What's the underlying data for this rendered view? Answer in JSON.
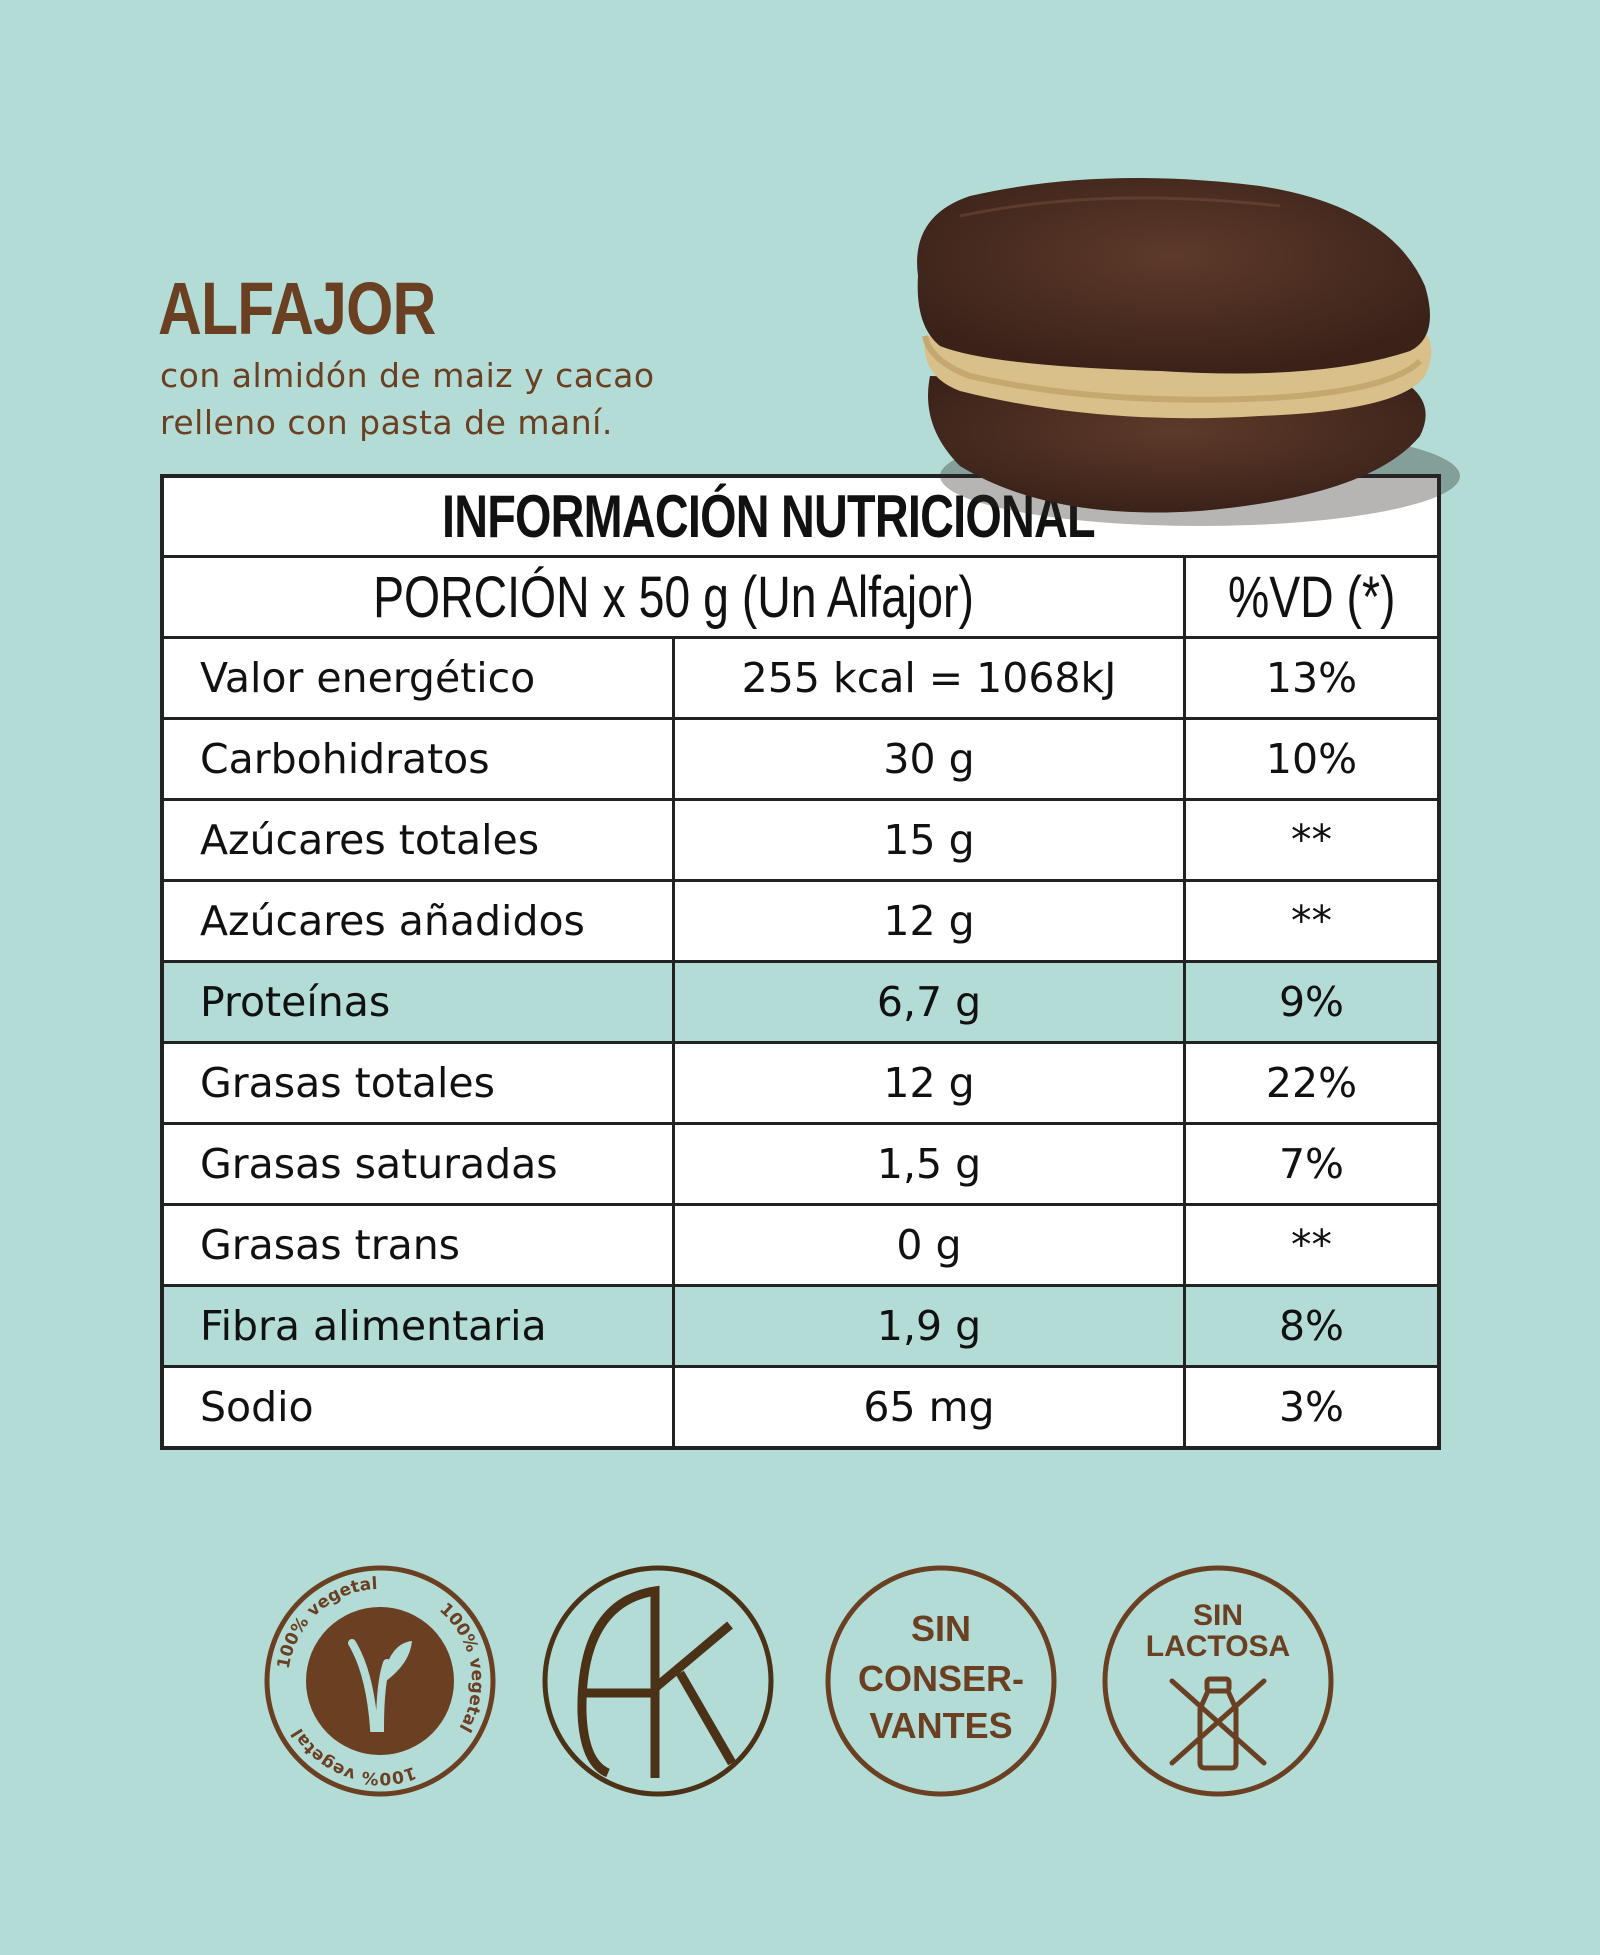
{
  "product": {
    "title": "ALFAJOR",
    "subtitle_lines": [
      "con almidón de maiz y cacao",
      "relleno con pasta de maní."
    ]
  },
  "table": {
    "title": "INFORMACIÓN NUTRICIONAL",
    "portion": "PORCIÓN x 50 g (Un Alfajor)",
    "vd_header": "%VD (*)",
    "rows": [
      {
        "name": "Valor energético",
        "value": "255 kcal = 1068kJ",
        "vd": "13%"
      },
      {
        "name": "Carbohidratos",
        "value": "30 g",
        "vd": "10%"
      },
      {
        "name": "Azúcares totales",
        "value": "15 g",
        "vd": "**"
      },
      {
        "name": "Azúcares añadidos",
        "value": "12 g",
        "vd": "**"
      },
      {
        "name": "Proteínas",
        "value": "6,7 g",
        "vd": "9%",
        "highlight": true
      },
      {
        "name": "Grasas totales",
        "value": "12 g",
        "vd": "22%"
      },
      {
        "name": "Grasas saturadas",
        "value": "1,5 g",
        "vd": "7%"
      },
      {
        "name": "Grasas trans",
        "value": "0 g",
        "vd": "**"
      },
      {
        "name": "Fibra alimentaria",
        "value": "1,9 g",
        "vd": "8%",
        "highlight": true
      },
      {
        "name": "Sodio",
        "value": "65 mg",
        "vd": "3%"
      }
    ]
  },
  "badges": {
    "vegan": {
      "ring_text": "100% vegetal",
      "icon": "leaf-v-icon"
    },
    "ak": {
      "text": "AK"
    },
    "conservantes": {
      "lines": [
        "SIN",
        "CONSER-",
        "VANTES"
      ]
    },
    "lactosa": {
      "lines": [
        "SIN",
        "LACTOSA"
      ],
      "icon": "crossed-milk-bottle-icon"
    }
  },
  "colors": {
    "background": "#b3dcd7",
    "brand_brown": "#6b3f22"
  }
}
